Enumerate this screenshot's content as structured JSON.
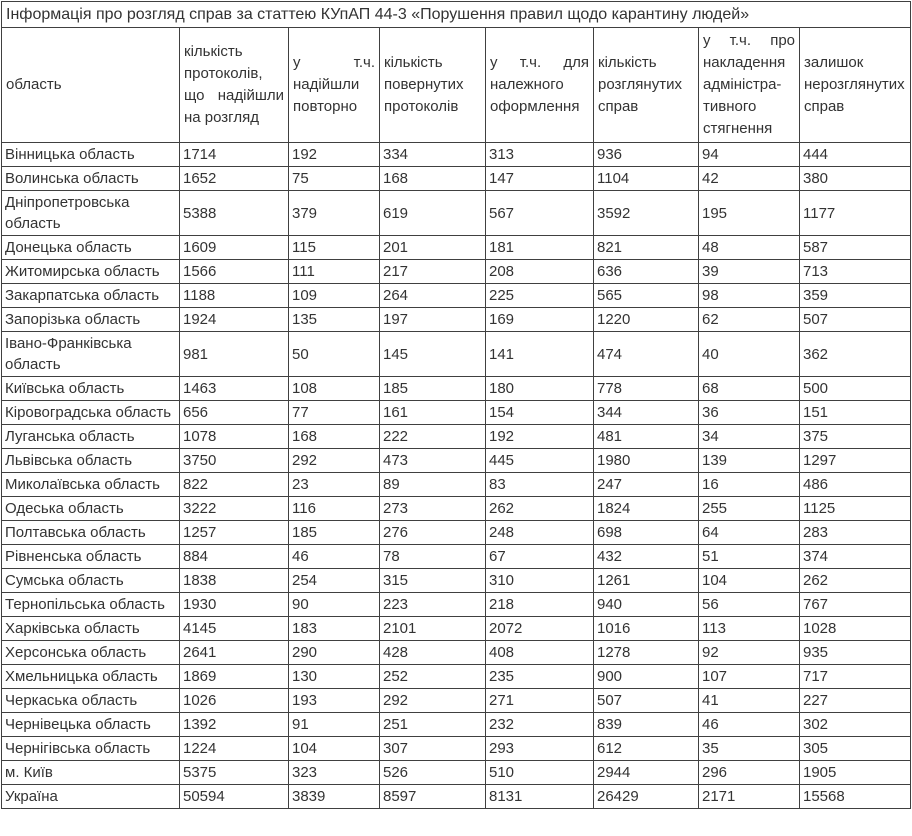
{
  "title": "Інформація про розгляд справ за статтею КУпАП 44-3 «Порушення правил щодо карантину людей»",
  "table": {
    "columns": [
      "область",
      "кількість протоколів, що надійшли на розгляд",
      "у т.ч. надійшли повторно",
      "кількість повернутих протоколів",
      "у т.ч. для належного оформлення",
      "кількість розглянутих справ",
      "у т.ч. про накладення адміністра-тивного стягнення",
      "залишок нерозглянутих справ"
    ],
    "rows": [
      {
        "region": "Вінницька область",
        "values": [
          1714,
          192,
          334,
          313,
          936,
          94,
          444
        ]
      },
      {
        "region": "Волинська область",
        "values": [
          1652,
          75,
          168,
          147,
          1104,
          42,
          380
        ]
      },
      {
        "region": "Дніпропетровська область",
        "values": [
          5388,
          379,
          619,
          567,
          3592,
          195,
          1177
        ]
      },
      {
        "region": "Донецька область",
        "values": [
          1609,
          115,
          201,
          181,
          821,
          48,
          587
        ]
      },
      {
        "region": "Житомирська область",
        "values": [
          1566,
          111,
          217,
          208,
          636,
          39,
          713
        ]
      },
      {
        "region": "Закарпатська область",
        "values": [
          1188,
          109,
          264,
          225,
          565,
          98,
          359
        ]
      },
      {
        "region": "Запорізька область",
        "values": [
          1924,
          135,
          197,
          169,
          1220,
          62,
          507
        ]
      },
      {
        "region": "Івано-Франківська область",
        "values": [
          981,
          50,
          145,
          141,
          474,
          40,
          362
        ]
      },
      {
        "region": "Київська область",
        "values": [
          1463,
          108,
          185,
          180,
          778,
          68,
          500
        ]
      },
      {
        "region": "Кіровоградська область",
        "values": [
          656,
          77,
          161,
          154,
          344,
          36,
          151
        ]
      },
      {
        "region": "Луганська область",
        "values": [
          1078,
          168,
          222,
          192,
          481,
          34,
          375
        ]
      },
      {
        "region": "Львівська область",
        "values": [
          3750,
          292,
          473,
          445,
          1980,
          139,
          1297
        ]
      },
      {
        "region": "Миколаївська область",
        "values": [
          822,
          23,
          89,
          83,
          247,
          16,
          486
        ]
      },
      {
        "region": "Одеська область",
        "values": [
          3222,
          116,
          273,
          262,
          1824,
          255,
          1125
        ]
      },
      {
        "region": "Полтавська область",
        "values": [
          1257,
          185,
          276,
          248,
          698,
          64,
          283
        ]
      },
      {
        "region": "Рівненська область",
        "values": [
          884,
          46,
          78,
          67,
          432,
          51,
          374
        ]
      },
      {
        "region": "Сумська область",
        "values": [
          1838,
          254,
          315,
          310,
          1261,
          104,
          262
        ]
      },
      {
        "region": "Тернопільська область",
        "values": [
          1930,
          90,
          223,
          218,
          940,
          56,
          767
        ]
      },
      {
        "region": "Харківська область",
        "values": [
          4145,
          183,
          2101,
          2072,
          1016,
          113,
          1028
        ]
      },
      {
        "region": "Херсонська область",
        "values": [
          2641,
          290,
          428,
          408,
          1278,
          92,
          935
        ]
      },
      {
        "region": "Хмельницька область",
        "values": [
          1869,
          130,
          252,
          235,
          900,
          107,
          717
        ]
      },
      {
        "region": "Черкаська область",
        "values": [
          1026,
          193,
          292,
          271,
          507,
          41,
          227
        ]
      },
      {
        "region": "Чернівецька область",
        "values": [
          1392,
          91,
          251,
          232,
          839,
          46,
          302
        ]
      },
      {
        "region": "Чернігівська область",
        "values": [
          1224,
          104,
          307,
          293,
          612,
          35,
          305
        ]
      },
      {
        "region": "м. Київ",
        "values": [
          5375,
          323,
          526,
          510,
          2944,
          296,
          1905
        ]
      },
      {
        "region": "Україна",
        "values": [
          50594,
          3839,
          8597,
          8131,
          26429,
          2171,
          15568
        ]
      }
    ]
  },
  "colors": {
    "text": "#333333",
    "border": "#404040",
    "background": "#ffffff"
  }
}
